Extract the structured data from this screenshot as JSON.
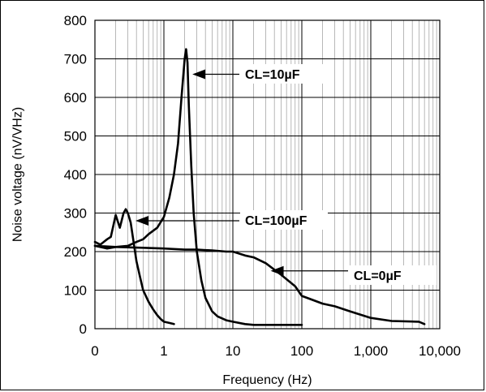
{
  "chart_data": {
    "type": "line",
    "xlabel": "Frequency (Hz)",
    "ylabel": "Noise voltage (nV/VHz)",
    "xscale": "log",
    "ylim": [
      0,
      800
    ],
    "xlim": [
      0.1,
      10000
    ],
    "x_tick_labels": [
      "0",
      "1",
      "10",
      "100",
      "1,000",
      "10,000"
    ],
    "y_tick_labels": [
      "0",
      "100",
      "200",
      "300",
      "400",
      "500",
      "600",
      "700",
      "800"
    ],
    "grid": true,
    "series": [
      {
        "name": "CL=10µF",
        "x": [
          0.1,
          0.15,
          0.2,
          0.3,
          0.4,
          0.5,
          0.6,
          0.8,
          1.0,
          1.2,
          1.4,
          1.6,
          1.8,
          2.0,
          2.1,
          2.2,
          2.3,
          2.5,
          2.7,
          3.0,
          3.5,
          4.0,
          5.0,
          6.0,
          8.0,
          10,
          15,
          20,
          30,
          50,
          100
        ],
        "y": [
          215,
          208,
          212,
          215,
          225,
          232,
          245,
          262,
          290,
          340,
          400,
          480,
          600,
          700,
          725,
          690,
          580,
          420,
          300,
          200,
          125,
          80,
          45,
          32,
          22,
          18,
          12,
          10,
          10,
          10,
          10
        ]
      },
      {
        "name": "CL=100µF",
        "x": [
          0.1,
          0.12,
          0.15,
          0.17,
          0.2,
          0.23,
          0.26,
          0.28,
          0.3,
          0.33,
          0.36,
          0.4,
          0.45,
          0.5,
          0.6,
          0.7,
          0.8,
          0.9,
          1.0,
          1.2,
          1.4
        ],
        "y": [
          225,
          218,
          232,
          238,
          295,
          262,
          300,
          310,
          300,
          275,
          230,
          175,
          135,
          100,
          70,
          50,
          35,
          25,
          18,
          15,
          12
        ]
      },
      {
        "name": "CL=0µF",
        "x": [
          0.1,
          0.2,
          0.5,
          1,
          2,
          3,
          5,
          8,
          10,
          15,
          20,
          30,
          50,
          80,
          100,
          200,
          300,
          500,
          1000,
          2000,
          5000,
          6000
        ],
        "y": [
          215,
          212,
          210,
          208,
          205,
          205,
          203,
          200,
          200,
          190,
          185,
          170,
          140,
          110,
          85,
          65,
          58,
          45,
          28,
          20,
          18,
          12
        ]
      }
    ],
    "annotations": [
      {
        "text": "CL=10µF",
        "x": 2.2,
        "y": 660
      },
      {
        "text": "CL=100µF",
        "x": 0.33,
        "y": 280
      },
      {
        "text": "CL=0µF",
        "x": 30,
        "y": 150
      }
    ]
  }
}
